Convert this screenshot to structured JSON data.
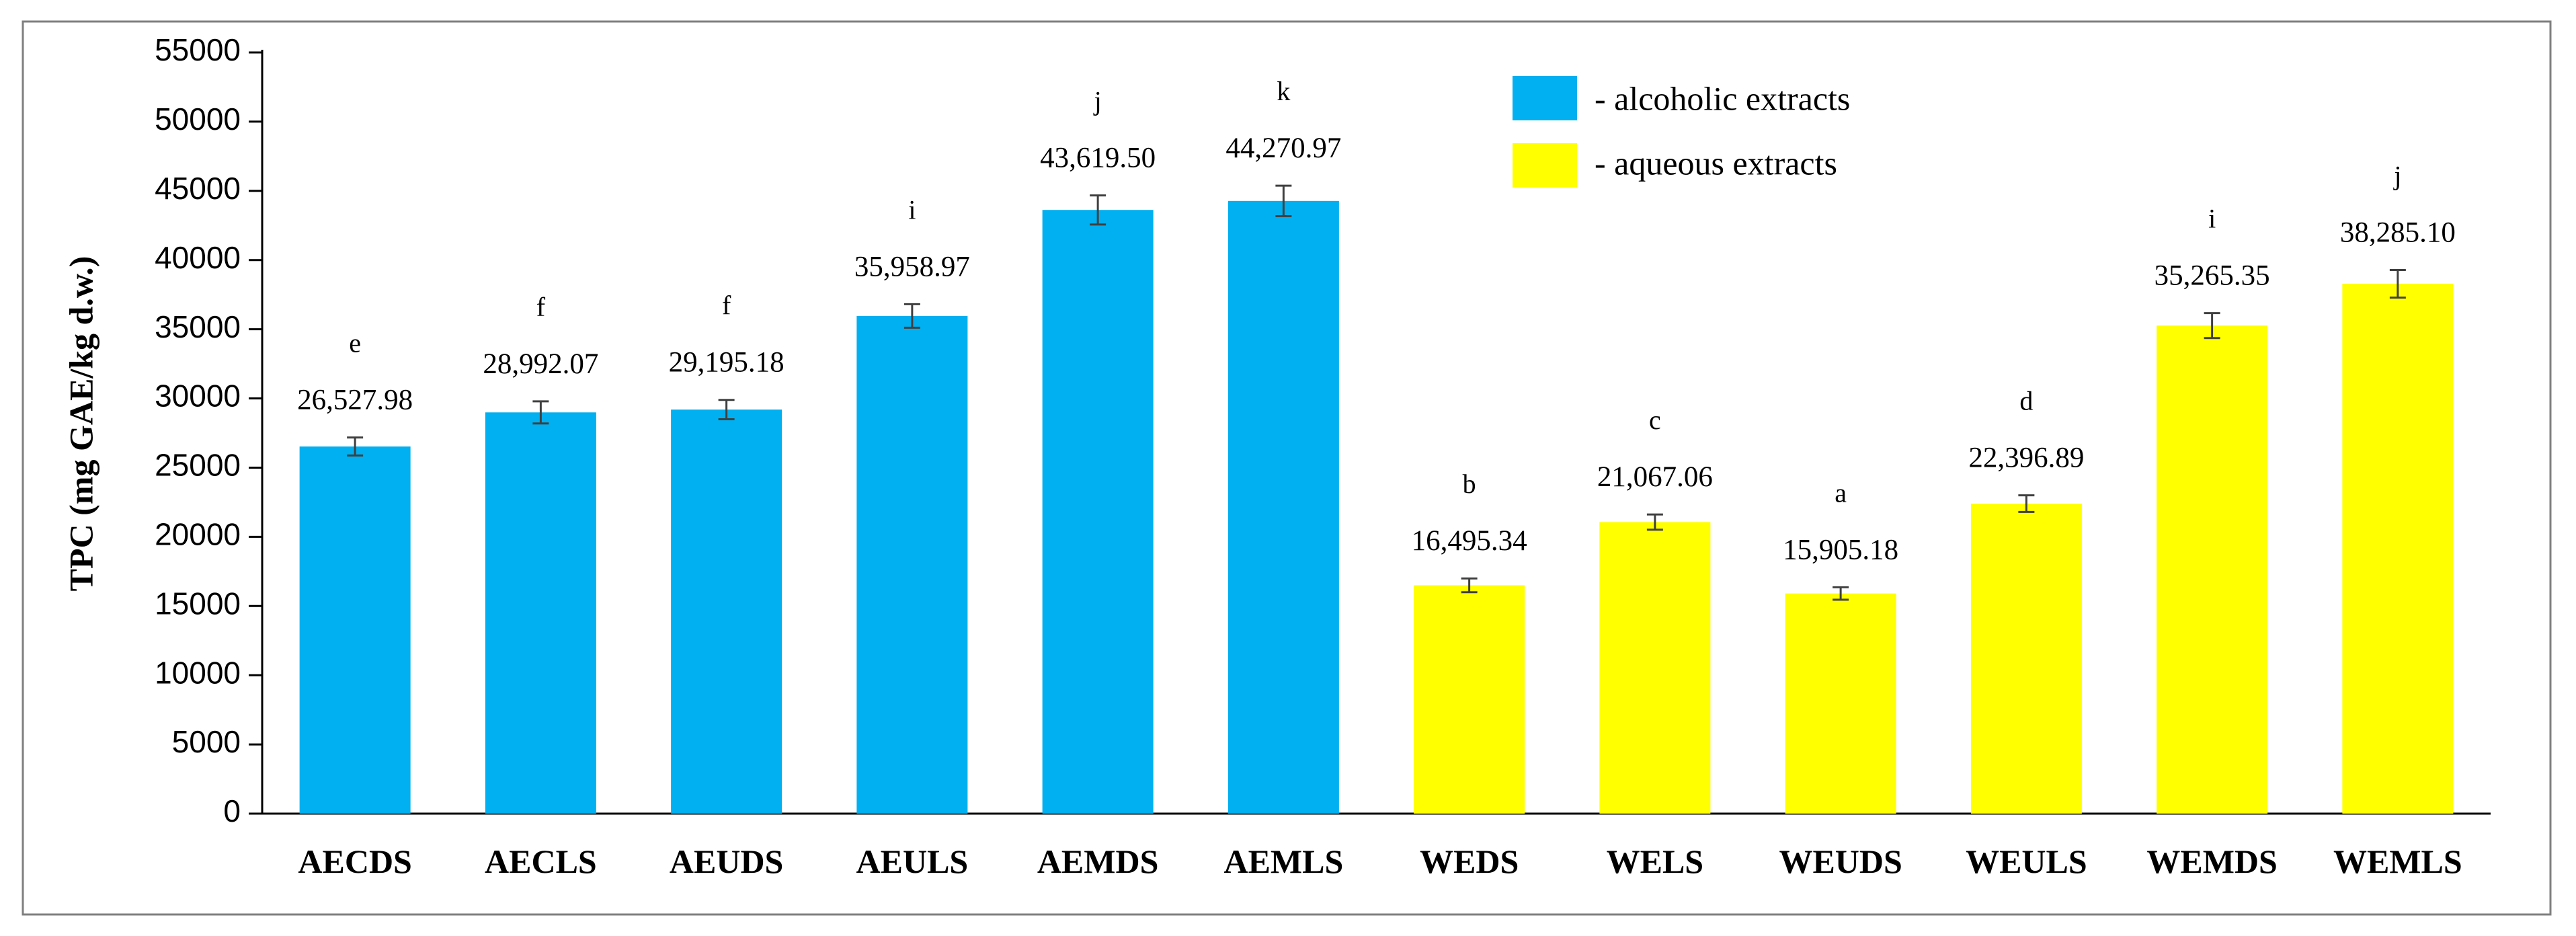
{
  "chart_data": {
    "type": "bar",
    "title": "",
    "xlabel": "",
    "ylabel": "TPC (mg GAE/kg d.w.)",
    "ylim": [
      0,
      55000
    ],
    "yticks": [
      0,
      5000,
      10000,
      15000,
      20000,
      25000,
      30000,
      35000,
      40000,
      45000,
      50000,
      55000
    ],
    "grid": false,
    "legend_position": "top-right",
    "categories": [
      "AECDS",
      "AECLS",
      "AEUDS",
      "AEULS",
      "AEMDS",
      "AEMLS",
      "WEDS",
      "WELS",
      "WEUDS",
      "WEULS",
      "WEMDS",
      "WEMLS"
    ],
    "values": [
      26527.98,
      28992.07,
      29195.18,
      35958.97,
      43619.5,
      44270.97,
      16495.34,
      21067.06,
      15905.18,
      22396.89,
      35265.35,
      38285.1
    ],
    "value_labels": [
      "26,527.98",
      "28,992.07",
      "29,195.18",
      "35,958.97",
      "43,619.50",
      "44,270.97",
      "16,495.34",
      "21,067.06",
      "15,905.18",
      "22,396.89",
      "35,265.35",
      "38,285.10"
    ],
    "errors": [
      650,
      800,
      700,
      850,
      1050,
      1100,
      500,
      550,
      450,
      600,
      900,
      1000
    ],
    "significance": [
      "e",
      "f",
      "f",
      "i",
      "j",
      "k",
      "b",
      "c",
      "a",
      "d",
      "i",
      "j"
    ],
    "bar_groups": [
      "alcoholic",
      "alcoholic",
      "alcoholic",
      "alcoholic",
      "alcoholic",
      "alcoholic",
      "aqueous",
      "aqueous",
      "aqueous",
      "aqueous",
      "aqueous",
      "aqueous"
    ],
    "legend": [
      {
        "key": "alcoholic",
        "label": "- alcoholic extracts",
        "color": "#00b0f0"
      },
      {
        "key": "aqueous",
        "label": "- aqueous extracts",
        "color": "#ffff00"
      }
    ]
  }
}
